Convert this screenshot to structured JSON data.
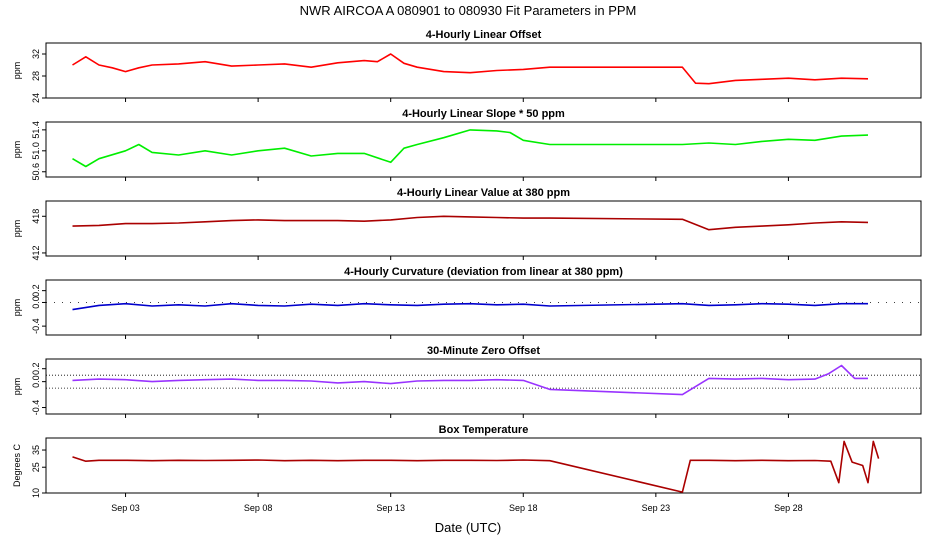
{
  "title": "NWR   AIRCOA A   080901 to 080930   Fit Parameters in PPM",
  "xlabel": "Date (UTC)",
  "x_ticks": [
    "Sep 03",
    "Sep 08",
    "Sep 13",
    "Sep 18",
    "Sep 23",
    "Sep 28"
  ],
  "chart_data": [
    {
      "type": "line",
      "title": "4-Hourly Linear Offset",
      "ylabel": "ppm",
      "y_ticks": [
        "24",
        "28",
        "32"
      ],
      "ylim": [
        24,
        34
      ],
      "color": "#ff0000",
      "gap": [
        19,
        24
      ],
      "series": [
        {
          "x": [
            1,
            1.5,
            2,
            2.5,
            3,
            3.5,
            4,
            5,
            6,
            7,
            8,
            9,
            10,
            11,
            12,
            12.5,
            13,
            13.5,
            14,
            15,
            16,
            17,
            18,
            19,
            24,
            24.5,
            25,
            26,
            27,
            28,
            29,
            30,
            31
          ],
          "y": [
            30,
            31.5,
            30,
            29.5,
            28.8,
            29.5,
            30,
            30.2,
            30.6,
            29.8,
            30,
            30.2,
            29.6,
            30.4,
            30.8,
            30.6,
            32,
            30.3,
            29.6,
            28.8,
            28.6,
            29,
            29.2,
            29.6,
            29.6,
            26.7,
            26.6,
            27.2,
            27.4,
            27.6,
            27.3,
            27.6,
            27.5
          ]
        }
      ]
    },
    {
      "type": "line",
      "title": "4-Hourly Linear Slope * 50 ppm",
      "ylabel": "ppm",
      "y_ticks": [
        "50.6",
        "51.0",
        "51.4"
      ],
      "ylim": [
        50.5,
        51.55
      ],
      "color": "#00ee00",
      "gap": [
        19,
        24
      ],
      "series": [
        {
          "x": [
            1,
            1.5,
            2,
            3,
            3.5,
            4,
            5,
            6,
            7,
            8,
            9,
            10,
            11,
            12,
            13,
            13.5,
            14,
            15,
            16,
            17,
            17.5,
            18,
            19,
            24,
            25,
            26,
            27,
            28,
            29,
            30,
            31
          ],
          "y": [
            50.85,
            50.7,
            50.85,
            51.0,
            51.12,
            50.97,
            50.92,
            51.0,
            50.92,
            51.0,
            51.05,
            50.9,
            50.95,
            50.95,
            50.78,
            51.05,
            51.12,
            51.25,
            51.4,
            51.38,
            51.35,
            51.2,
            51.12,
            51.12,
            51.15,
            51.12,
            51.18,
            51.22,
            51.2,
            51.28,
            51.3
          ]
        }
      ]
    },
    {
      "type": "line",
      "title": "4-Hourly Linear Value at 380 ppm",
      "ylabel": "ppm",
      "y_ticks": [
        "412",
        "418"
      ],
      "ylim": [
        411.5,
        420.5
      ],
      "color": "#aa0000",
      "gap": [
        19,
        24
      ],
      "series": [
        {
          "x": [
            1,
            2,
            3,
            4,
            5,
            6,
            7,
            8,
            9,
            10,
            11,
            12,
            13,
            14,
            15,
            16,
            17,
            18,
            19,
            24,
            25,
            26,
            27,
            28,
            29,
            30,
            31
          ],
          "y": [
            416.4,
            416.5,
            416.8,
            416.8,
            416.9,
            417.1,
            417.3,
            417.4,
            417.3,
            417.3,
            417.3,
            417.2,
            417.4,
            417.8,
            418.0,
            417.9,
            417.8,
            417.7,
            417.7,
            417.5,
            415.8,
            416.2,
            416.4,
            416.6,
            416.9,
            417.1,
            417.0
          ]
        }
      ]
    },
    {
      "type": "line",
      "title": "4-Hourly Curvature (deviation from linear at 380 ppm)",
      "ylabel": "ppm",
      "y_ticks": [
        "-0.4",
        "0.0",
        "0.2"
      ],
      "ylim": [
        -0.55,
        0.38
      ],
      "color": "#0000cc",
      "gap": [
        19,
        24
      ],
      "series": [
        {
          "x": [
            1,
            2,
            3,
            4,
            5,
            6,
            7,
            8,
            9,
            10,
            11,
            12,
            13,
            14,
            15,
            16,
            17,
            18,
            19,
            24,
            25,
            26,
            27,
            28,
            29,
            30,
            31
          ],
          "y": [
            -0.12,
            -0.05,
            -0.02,
            -0.06,
            -0.04,
            -0.06,
            -0.02,
            -0.05,
            -0.06,
            -0.03,
            -0.05,
            -0.02,
            -0.04,
            -0.05,
            -0.03,
            -0.02,
            -0.04,
            -0.03,
            -0.06,
            -0.02,
            -0.05,
            -0.04,
            -0.02,
            -0.03,
            -0.05,
            -0.02,
            -0.02
          ]
        }
      ]
    },
    {
      "type": "line",
      "title": "30-Minute Zero Offset",
      "ylabel": "ppm",
      "y_ticks": [
        "-0.4",
        "0.0",
        "0.2"
      ],
      "ylim": [
        -0.5,
        0.35
      ],
      "color": "#9933ff",
      "gap": [
        19,
        24
      ],
      "series": [
        {
          "x": [
            1,
            2,
            3,
            4,
            5,
            6,
            7,
            8,
            9,
            10,
            11,
            12,
            13,
            14,
            15,
            16,
            17,
            18,
            19,
            24,
            25,
            26,
            27,
            28,
            29,
            29.5,
            30,
            30.5,
            31
          ],
          "y": [
            0.02,
            0.04,
            0.03,
            0.0,
            0.02,
            0.03,
            0.04,
            0.02,
            0.02,
            0.01,
            -0.02,
            0.0,
            -0.03,
            0.01,
            0.02,
            0.02,
            0.03,
            0.02,
            -0.12,
            -0.2,
            0.05,
            0.04,
            0.05,
            0.03,
            0.04,
            0.12,
            0.25,
            0.05,
            0.05
          ]
        }
      ]
    },
    {
      "type": "line",
      "title": "Box Temperature",
      "ylabel": "Degrees C",
      "y_ticks": [
        "10",
        "25",
        "35"
      ],
      "ylim": [
        10,
        42
      ],
      "color": "#aa0000",
      "gap": null,
      "series": [
        {
          "x": [
            1,
            1.5,
            2,
            3,
            4,
            5,
            6,
            7,
            8,
            9,
            10,
            11,
            12,
            13,
            14,
            15,
            16,
            17,
            18,
            19,
            24,
            24.3,
            25,
            26,
            27,
            28,
            29,
            29.6,
            29.9,
            30.1,
            30.4,
            30.8,
            31,
            31.2,
            31.4
          ],
          "y": [
            31,
            28.5,
            29,
            29,
            28.8,
            29,
            28.9,
            29,
            29.2,
            28.8,
            29,
            28.8,
            29,
            29,
            28.8,
            29,
            29,
            28.9,
            29.2,
            28.8,
            10.5,
            29,
            29,
            28.8,
            29,
            28.8,
            28.9,
            28.5,
            16,
            40,
            28,
            26,
            16,
            40,
            30
          ]
        }
      ]
    }
  ]
}
